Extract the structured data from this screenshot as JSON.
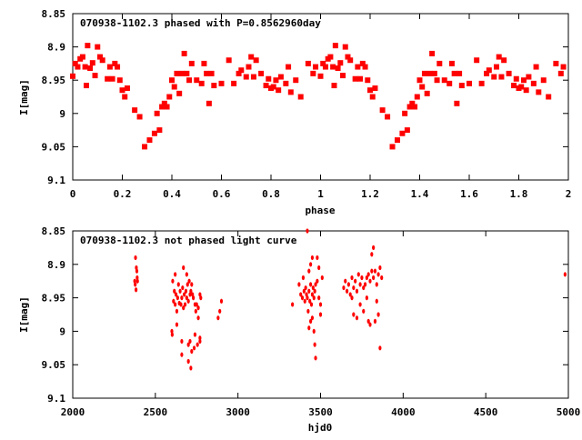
{
  "chart_data": [
    {
      "type": "scatter",
      "title": "070938-1102.3 phased with P=0.8562960day",
      "xlabel": "phase",
      "ylabel": "I[mag]",
      "xlim": [
        0,
        2
      ],
      "ylim": [
        8.85,
        9.1
      ],
      "y_inverted": true,
      "xticks": [
        "0",
        "0.2",
        "0.4",
        "0.6",
        "0.8",
        "1",
        "1.2",
        "1.4",
        "1.6",
        "1.8",
        "2"
      ],
      "xtick_values": [
        0,
        0.2,
        0.4,
        0.6,
        0.8,
        1,
        1.2,
        1.4,
        1.6,
        1.8,
        2
      ],
      "yticks": [
        "8.85",
        "8.9",
        "8.95",
        "9",
        "9.05",
        "9.1"
      ],
      "ytick_values": [
        8.85,
        8.9,
        8.95,
        9,
        9.05,
        9.1
      ],
      "color": "#ff0000",
      "marker": "square",
      "phase_repeat_offset": 1,
      "points": [
        [
          0.0,
          8.944
        ],
        [
          0.01,
          8.925
        ],
        [
          0.02,
          8.93
        ],
        [
          0.03,
          8.918
        ],
        [
          0.04,
          8.915
        ],
        [
          0.05,
          8.93
        ],
        [
          0.055,
          8.958
        ],
        [
          0.06,
          8.898
        ],
        [
          0.07,
          8.932
        ],
        [
          0.08,
          8.924
        ],
        [
          0.09,
          8.943
        ],
        [
          0.1,
          8.9
        ],
        [
          0.11,
          8.915
        ],
        [
          0.12,
          8.92
        ],
        [
          0.14,
          8.948
        ],
        [
          0.15,
          8.93
        ],
        [
          0.16,
          8.948
        ],
        [
          0.17,
          8.925
        ],
        [
          0.18,
          8.93
        ],
        [
          0.19,
          8.95
        ],
        [
          0.2,
          8.965
        ],
        [
          0.21,
          8.975
        ],
        [
          0.22,
          8.962
        ],
        [
          0.25,
          8.995
        ],
        [
          0.27,
          9.005
        ],
        [
          0.29,
          9.05
        ],
        [
          0.31,
          9.04
        ],
        [
          0.33,
          9.03
        ],
        [
          0.34,
          9.0
        ],
        [
          0.35,
          9.025
        ],
        [
          0.36,
          8.99
        ],
        [
          0.37,
          8.985
        ],
        [
          0.38,
          8.99
        ],
        [
          0.39,
          8.975
        ],
        [
          0.4,
          8.95
        ],
        [
          0.41,
          8.96
        ],
        [
          0.42,
          8.94
        ],
        [
          0.43,
          8.97
        ],
        [
          0.44,
          8.94
        ],
        [
          0.45,
          8.91
        ],
        [
          0.46,
          8.94
        ],
        [
          0.47,
          8.95
        ],
        [
          0.48,
          8.925
        ],
        [
          0.5,
          8.95
        ],
        [
          0.52,
          8.955
        ],
        [
          0.53,
          8.925
        ],
        [
          0.54,
          8.94
        ],
        [
          0.55,
          8.985
        ],
        [
          0.56,
          8.94
        ],
        [
          0.57,
          8.958
        ],
        [
          0.6,
          8.955
        ],
        [
          0.63,
          8.92
        ],
        [
          0.65,
          8.955
        ],
        [
          0.67,
          8.94
        ],
        [
          0.68,
          8.935
        ],
        [
          0.7,
          8.945
        ],
        [
          0.71,
          8.93
        ],
        [
          0.72,
          8.915
        ],
        [
          0.73,
          8.945
        ],
        [
          0.74,
          8.92
        ],
        [
          0.76,
          8.94
        ],
        [
          0.78,
          8.958
        ],
        [
          0.79,
          8.948
        ],
        [
          0.8,
          8.962
        ],
        [
          0.81,
          8.96
        ],
        [
          0.82,
          8.95
        ],
        [
          0.83,
          8.965
        ],
        [
          0.84,
          8.945
        ],
        [
          0.86,
          8.955
        ],
        [
          0.87,
          8.93
        ],
        [
          0.88,
          8.968
        ],
        [
          0.9,
          8.95
        ],
        [
          0.92,
          8.975
        ],
        [
          0.95,
          8.925
        ],
        [
          0.97,
          8.94
        ],
        [
          0.98,
          8.93
        ]
      ]
    },
    {
      "type": "scatter",
      "title": "070938-1102.3 not phased light curve",
      "xlabel": "hjd0",
      "ylabel": "I[mag]",
      "xlim": [
        2000,
        5000
      ],
      "ylim": [
        8.85,
        9.1
      ],
      "y_inverted": true,
      "xticks": [
        "2000",
        "2500",
        "3000",
        "3500",
        "4000",
        "4500",
        "5000"
      ],
      "xtick_values": [
        2000,
        2500,
        3000,
        3500,
        4000,
        4500,
        5000
      ],
      "yticks": [
        "8.85",
        "8.9",
        "8.95",
        "9",
        "9.05",
        "9.1"
      ],
      "ytick_values": [
        8.85,
        8.9,
        8.95,
        9,
        9.05,
        9.1
      ],
      "color": "#ff0000",
      "marker": "diamond",
      "points": [
        [
          2375,
          8.925
        ],
        [
          2380,
          8.89
        ],
        [
          2385,
          8.905
        ],
        [
          2388,
          8.91
        ],
        [
          2378,
          8.93
        ],
        [
          2390,
          8.92
        ],
        [
          2392,
          8.925
        ],
        [
          2383,
          8.938
        ],
        [
          2605,
          8.925
        ],
        [
          2610,
          8.955
        ],
        [
          2615,
          8.94
        ],
        [
          2620,
          8.96
        ],
        [
          2625,
          8.945
        ],
        [
          2630,
          8.97
        ],
        [
          2635,
          8.95
        ],
        [
          2640,
          8.93
        ],
        [
          2645,
          8.958
        ],
        [
          2650,
          8.94
        ],
        [
          2655,
          8.96
        ],
        [
          2660,
          8.95
        ],
        [
          2665,
          8.935
        ],
        [
          2670,
          8.965
        ],
        [
          2675,
          8.945
        ],
        [
          2680,
          8.96
        ],
        [
          2685,
          8.94
        ],
        [
          2690,
          8.95
        ],
        [
          2695,
          8.93
        ],
        [
          2700,
          8.955
        ],
        [
          2705,
          8.925
        ],
        [
          2710,
          8.945
        ],
        [
          2715,
          8.94
        ],
        [
          2720,
          8.93
        ],
        [
          2725,
          8.945
        ],
        [
          2730,
          8.95
        ],
        [
          2740,
          8.96
        ],
        [
          2745,
          8.97
        ],
        [
          2750,
          8.96
        ],
        [
          2760,
          8.965
        ],
        [
          2770,
          8.945
        ],
        [
          2775,
          8.95
        ],
        [
          2600,
          9.0
        ],
        [
          2602,
          9.005
        ],
        [
          2630,
          8.99
        ],
        [
          2660,
          9.015
        ],
        [
          2700,
          9.02
        ],
        [
          2710,
          9.015
        ],
        [
          2720,
          9.03
        ],
        [
          2735,
          9.025
        ],
        [
          2755,
          9.02
        ],
        [
          2660,
          9.035
        ],
        [
          2700,
          9.045
        ],
        [
          2715,
          9.055
        ],
        [
          2740,
          9.005
        ],
        [
          2770,
          9.015
        ],
        [
          2620,
          8.915
        ],
        [
          2670,
          8.905
        ],
        [
          2690,
          8.915
        ],
        [
          2760,
          8.98
        ],
        [
          2770,
          9.01
        ],
        [
          2880,
          8.98
        ],
        [
          2890,
          8.97
        ],
        [
          2900,
          8.955
        ],
        [
          3330,
          8.96
        ],
        [
          3370,
          8.93
        ],
        [
          3380,
          8.945
        ],
        [
          3390,
          8.95
        ],
        [
          3395,
          8.92
        ],
        [
          3400,
          8.94
        ],
        [
          3405,
          8.955
        ],
        [
          3410,
          8.935
        ],
        [
          3415,
          8.945
        ],
        [
          3420,
          8.95
        ],
        [
          3425,
          8.97
        ],
        [
          3430,
          8.94
        ],
        [
          3435,
          8.955
        ],
        [
          3440,
          8.93
        ],
        [
          3445,
          8.96
        ],
        [
          3450,
          8.945
        ],
        [
          3455,
          8.935
        ],
        [
          3460,
          8.95
        ],
        [
          3465,
          8.94
        ],
        [
          3470,
          8.93
        ],
        [
          3480,
          8.925
        ],
        [
          3490,
          8.95
        ],
        [
          3500,
          8.96
        ],
        [
          3430,
          8.91
        ],
        [
          3440,
          8.9
        ],
        [
          3450,
          8.89
        ],
        [
          3480,
          8.89
        ],
        [
          3490,
          8.905
        ],
        [
          3510,
          8.92
        ],
        [
          3420,
          8.85
        ],
        [
          3440,
          8.985
        ],
        [
          3450,
          8.98
        ],
        [
          3460,
          9.0
        ],
        [
          3465,
          9.02
        ],
        [
          3470,
          9.04
        ],
        [
          3430,
          8.995
        ],
        [
          3500,
          8.975
        ],
        [
          3640,
          8.935
        ],
        [
          3650,
          8.925
        ],
        [
          3660,
          8.94
        ],
        [
          3670,
          8.93
        ],
        [
          3680,
          8.945
        ],
        [
          3690,
          8.92
        ],
        [
          3700,
          8.935
        ],
        [
          3710,
          8.925
        ],
        [
          3720,
          8.94
        ],
        [
          3730,
          8.915
        ],
        [
          3740,
          8.93
        ],
        [
          3750,
          8.92
        ],
        [
          3760,
          8.935
        ],
        [
          3770,
          8.93
        ],
        [
          3780,
          8.92
        ],
        [
          3790,
          8.915
        ],
        [
          3800,
          8.925
        ],
        [
          3810,
          8.91
        ],
        [
          3820,
          8.92
        ],
        [
          3830,
          8.91
        ],
        [
          3840,
          8.93
        ],
        [
          3850,
          8.915
        ],
        [
          3860,
          8.905
        ],
        [
          3870,
          8.92
        ],
        [
          3810,
          8.885
        ],
        [
          3820,
          8.875
        ],
        [
          3700,
          8.975
        ],
        [
          3720,
          8.98
        ],
        [
          3760,
          8.97
        ],
        [
          3790,
          8.985
        ],
        [
          3800,
          8.99
        ],
        [
          3830,
          8.985
        ],
        [
          3850,
          8.975
        ],
        [
          3860,
          9.025
        ],
        [
          3690,
          8.95
        ],
        [
          3740,
          8.96
        ],
        [
          3780,
          8.95
        ],
        [
          3840,
          8.955
        ],
        [
          4980,
          8.915
        ]
      ]
    }
  ]
}
